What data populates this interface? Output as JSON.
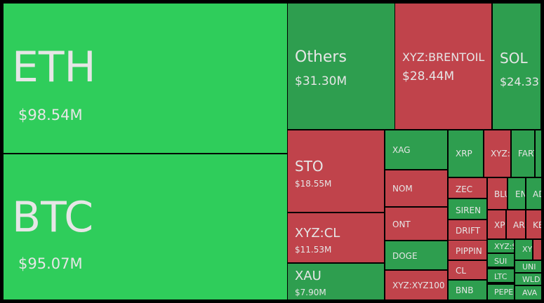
{
  "tiles": [
    {
      "label": "ETH",
      "value": "$98.54M"
    },
    {
      "label": "BTC",
      "value": "$95.07M"
    },
    {
      "label": "Others",
      "value": "$31.30M"
    },
    {
      "label": "XYZ:BRENTOIL",
      "value": "$28.44M"
    },
    {
      "label": "SOL",
      "value": "$24.33"
    },
    {
      "label": "STO",
      "value": "$18.55M"
    },
    {
      "label": "XYZ:CL",
      "value": "$11.53M"
    },
    {
      "label": "XAU",
      "value": "$7.90M"
    },
    {
      "label": "XAG"
    },
    {
      "label": "NOM"
    },
    {
      "label": "ONT"
    },
    {
      "label": "DOGE"
    },
    {
      "label": "XYZ:XYZ100"
    },
    {
      "label": "XRP"
    },
    {
      "label": "XYZ:S"
    },
    {
      "label": "FART"
    },
    {
      "label": "ZEC"
    },
    {
      "label": "SIREN"
    },
    {
      "label": "DRIFT"
    },
    {
      "label": "PIPPIN"
    },
    {
      "label": "CL"
    },
    {
      "label": "BNB"
    },
    {
      "label": "BLU"
    },
    {
      "label": "EN"
    },
    {
      "label": "AD"
    },
    {
      "label": "XP"
    },
    {
      "label": "AR"
    },
    {
      "label": "KE"
    },
    {
      "label": "XYZ:S"
    },
    {
      "label": "SUI"
    },
    {
      "label": "LTC"
    },
    {
      "label": "PEPE"
    },
    {
      "label": "XY"
    },
    {
      "label": "UNI"
    },
    {
      "label": "WLD"
    },
    {
      "label": "AVA"
    }
  ]
}
